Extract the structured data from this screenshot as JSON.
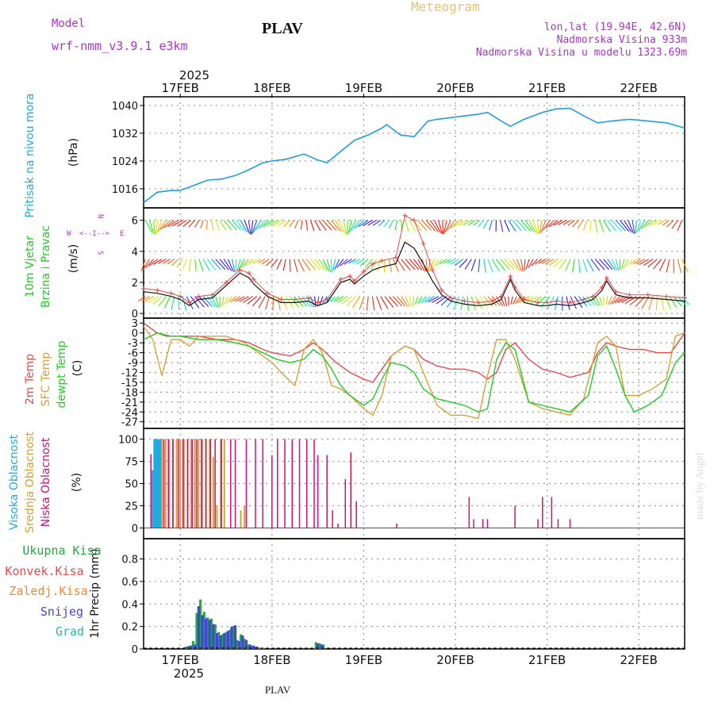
{
  "header": {
    "model_label": "Model",
    "model_name": "wrf-nmm_v3.9.1 e3km",
    "station": "PLAV",
    "title": "Meteogram",
    "lonlat": "lon,lat (19.94E, 42.6N)",
    "elevation": "Nadmorska Visina 933m",
    "model_elevation": "Nadmorska Visina u modelu 1323.69m",
    "footer_station": "PLAV",
    "credit": "made by Angel"
  },
  "colors": {
    "pressure": "#1f9fe0",
    "temp2m": "#e84a4a",
    "sfc": "#d4a23a",
    "dew": "#22cc22",
    "high_cloud": "#22aadd",
    "mid_cloud": "#d6a030",
    "low_cloud": "#cc1177",
    "total_precip": "#22aa44",
    "conv_precip": "#e84a4a",
    "freezing_precip": "#ee8833",
    "snow": "#4444dd",
    "hail": "#22bbaa",
    "grid": "#999999",
    "label_purple": "#aa33cc",
    "title_orange": "#e8c070"
  },
  "chart_data": [
    {
      "type": "line",
      "panel": "pressure",
      "x_dates": [
        "2025",
        "17FEB",
        "18FEB",
        "19FEB",
        "20FEB",
        "21FEB",
        "22FEB"
      ],
      "xlim_days": [
        16.6,
        22.5
      ],
      "ylabel": "(hPa)",
      "side_label": "Pritisak na nivou mora",
      "yticks": [
        1016,
        1024,
        1032,
        1040
      ],
      "ylim": [
        1010.5,
        1042.5
      ],
      "x": [
        16.6,
        16.75,
        16.9,
        17.0,
        17.15,
        17.3,
        17.45,
        17.6,
        17.75,
        17.9,
        18.0,
        18.15,
        18.35,
        18.5,
        18.6,
        18.75,
        18.9,
        19.05,
        19.2,
        19.25,
        19.4,
        19.55,
        19.7,
        19.8,
        19.95,
        20.1,
        20.25,
        20.35,
        20.5,
        20.6,
        20.75,
        20.95,
        21.1,
        21.25,
        21.4,
        21.55,
        21.7,
        21.9,
        22.1,
        22.3,
        22.5
      ],
      "values": [
        1012,
        1015,
        1015.5,
        1015.5,
        1017,
        1018.5,
        1018.8,
        1019.8,
        1021.5,
        1023.5,
        1024,
        1024.5,
        1026,
        1024.3,
        1023.5,
        1026.8,
        1030,
        1031.5,
        1033.5,
        1034.5,
        1031.5,
        1031,
        1035.5,
        1036,
        1036.5,
        1037,
        1037.5,
        1038,
        1035.5,
        1034,
        1036,
        1038,
        1039,
        1039.2,
        1037,
        1035,
        1035.5,
        1036,
        1035.5,
        1035,
        1033.5
      ]
    },
    {
      "type": "line",
      "panel": "wind",
      "ylabel": "(m/s)",
      "side_label": "10m Vjetar Brzina i Pravac",
      "compass": {
        "n": "N",
        "w": "W",
        "e": "E",
        "s": "S",
        "a": "<--I-->"
      },
      "yticks": [
        0,
        2,
        4,
        6
      ],
      "ylim": [
        -0.3,
        6.8
      ],
      "x": [
        16.6,
        16.75,
        16.9,
        17.0,
        17.1,
        17.2,
        17.35,
        17.5,
        17.65,
        17.75,
        17.8,
        17.95,
        18.1,
        18.25,
        18.4,
        18.5,
        18.6,
        18.75,
        18.85,
        18.9,
        19.0,
        19.1,
        19.2,
        19.35,
        19.45,
        19.55,
        19.65,
        19.75,
        19.85,
        19.95,
        20.1,
        20.25,
        20.4,
        20.5,
        20.6,
        20.65,
        20.75,
        20.9,
        21.0,
        21.1,
        21.25,
        21.4,
        21.5,
        21.6,
        21.65,
        21.75,
        21.9,
        22.1,
        22.3,
        22.5
      ],
      "values": [
        1.4,
        1.3,
        1.1,
        0.9,
        0.5,
        0.9,
        1.0,
        1.8,
        2.6,
        2.3,
        1.9,
        1.1,
        0.7,
        0.7,
        0.8,
        0.5,
        0.7,
        2.0,
        2.2,
        1.9,
        2.4,
        2.8,
        3.0,
        3.2,
        4.6,
        4.2,
        3.2,
        2.1,
        1.2,
        0.8,
        0.6,
        0.5,
        0.6,
        0.9,
        2.2,
        1.5,
        0.7,
        0.5,
        0.5,
        0.6,
        0.5,
        0.7,
        0.9,
        1.5,
        2.1,
        1.2,
        1.0,
        1.0,
        0.9,
        0.8
      ],
      "max_values": [
        1.6,
        1.5,
        1.3,
        1.1,
        0.7,
        1.1,
        1.2,
        2.0,
        2.8,
        2.6,
        2.2,
        1.3,
        0.9,
        0.9,
        1.0,
        0.7,
        0.9,
        2.2,
        2.4,
        2.1,
        2.7,
        3.2,
        3.4,
        3.6,
        6.3,
        6.0,
        4.5,
        2.8,
        1.5,
        1.0,
        0.8,
        0.7,
        0.8,
        1.1,
        2.4,
        1.7,
        0.9,
        0.7,
        0.7,
        0.8,
        0.7,
        0.9,
        1.1,
        1.7,
        2.3,
        1.4,
        1.2,
        1.2,
        1.1,
        1.0
      ]
    },
    {
      "type": "line",
      "panel": "temperature",
      "ylabel": "(C)",
      "side_labels": [
        "2m Temp",
        "SFC Temp",
        "dewpt Temp"
      ],
      "yticks": [
        3,
        0,
        -3,
        -6,
        -9,
        -12,
        -15,
        -18,
        -21,
        -24,
        -27
      ],
      "ylim": [
        -29,
        4.5
      ],
      "series": [
        {
          "name": "2m Temp",
          "x": [
            16.6,
            16.75,
            16.85,
            17.0,
            17.2,
            17.4,
            17.6,
            17.75,
            17.9,
            18.0,
            18.2,
            18.35,
            18.45,
            18.55,
            18.7,
            18.85,
            19.0,
            19.1,
            19.2,
            19.3,
            19.45,
            19.55,
            19.65,
            19.8,
            19.95,
            20.1,
            20.25,
            20.35,
            20.45,
            20.55,
            20.65,
            20.8,
            20.95,
            21.1,
            21.25,
            21.45,
            21.55,
            21.65,
            21.75,
            21.9,
            22.05,
            22.2,
            22.35,
            22.45,
            22.5
          ],
          "values": [
            3,
            0,
            -1,
            -1,
            -1,
            -2,
            -2,
            -3,
            -5,
            -6,
            -7,
            -5,
            -3,
            -5,
            -9,
            -12,
            -14,
            -15,
            -11,
            -7,
            -4,
            -5,
            -8,
            -10,
            -11,
            -11,
            -12,
            -14,
            -12,
            -5,
            -3,
            -8,
            -11,
            -12,
            -13.5,
            -12,
            -6,
            -3,
            -4,
            -5,
            -5,
            -6,
            -6,
            -2,
            0
          ]
        },
        {
          "name": "SFC Temp",
          "x": [
            16.6,
            16.7,
            16.8,
            16.9,
            17.0,
            17.1,
            17.2,
            17.35,
            17.5,
            17.7,
            17.85,
            18.0,
            18.1,
            18.25,
            18.35,
            18.45,
            18.55,
            18.65,
            18.75,
            18.85,
            19.0,
            19.1,
            19.2,
            19.3,
            19.45,
            19.55,
            19.65,
            19.8,
            19.95,
            20.1,
            20.25,
            20.35,
            20.45,
            20.55,
            20.65,
            20.8,
            20.95,
            21.1,
            21.25,
            21.4,
            21.55,
            21.65,
            21.75,
            21.85,
            22.0,
            22.15,
            22.3,
            22.4,
            22.5
          ],
          "values": [
            2,
            -2,
            -13,
            -2,
            -2,
            -4,
            -1,
            -1,
            -1,
            -3,
            -6,
            -9,
            -12,
            -16,
            -5,
            -2,
            -6,
            -16,
            -17,
            -19,
            -23,
            -25,
            -19,
            -7,
            -4,
            -5,
            -12,
            -22,
            -25,
            -25,
            -26,
            -13,
            -2,
            -2,
            -8,
            -21,
            -23,
            -24,
            -25,
            -20,
            -3,
            -1,
            -4,
            -19,
            -19,
            -17,
            -14,
            -1,
            0
          ]
        },
        {
          "name": "dewpt Temp",
          "x": [
            16.6,
            16.75,
            16.9,
            17.0,
            17.2,
            17.4,
            17.6,
            17.75,
            17.9,
            18.05,
            18.2,
            18.35,
            18.45,
            18.55,
            18.65,
            18.75,
            18.85,
            19.0,
            19.1,
            19.2,
            19.3,
            19.45,
            19.55,
            19.65,
            19.8,
            19.95,
            20.1,
            20.25,
            20.35,
            20.45,
            20.55,
            20.65,
            20.8,
            20.95,
            21.1,
            21.25,
            21.45,
            21.55,
            21.65,
            21.75,
            21.85,
            21.95,
            22.1,
            22.25,
            22.4,
            22.5
          ],
          "values": [
            -2,
            0,
            -1,
            -1,
            -2,
            -2,
            -3,
            -4,
            -6,
            -8,
            -9,
            -8,
            -5,
            -7,
            -11,
            -16,
            -19,
            -22,
            -20,
            -14,
            -9,
            -10,
            -12,
            -17,
            -20,
            -21,
            -22,
            -24,
            -23,
            -8,
            -3,
            -5,
            -21,
            -22,
            -23,
            -24,
            -19,
            -7,
            -4,
            -11,
            -19,
            -24,
            -22,
            -19,
            -9,
            -6
          ]
        }
      ]
    },
    {
      "type": "bar",
      "panel": "cloud_cover",
      "ylabel": "(%)",
      "side_labels": [
        "Visoka Oblacnost",
        "Srednja Oblacnost",
        "Niska Oblacnost"
      ],
      "yticks": [
        0,
        25,
        50,
        75,
        100
      ],
      "ylim": [
        0,
        100
      ],
      "series": [
        {
          "name": "Visoka Oblacnost",
          "x": [
            16.7,
            16.72,
            16.74,
            16.76,
            16.78
          ],
          "values": [
            65,
            100,
            100,
            100,
            100
          ]
        },
        {
          "name": "Srednja Oblacnost",
          "x": [
            16.8,
            16.84,
            16.88,
            16.92,
            16.96,
            17.0,
            17.04,
            17.08,
            17.12,
            17.16,
            17.2,
            17.24,
            17.28,
            17.32,
            17.36,
            17.4,
            17.44,
            17.48,
            17.66,
            17.7
          ],
          "values": [
            100,
            100,
            100,
            100,
            100,
            100,
            100,
            100,
            100,
            100,
            100,
            100,
            100,
            100,
            80,
            25,
            100,
            100,
            20,
            25
          ]
        },
        {
          "name": "Niska Oblacnost",
          "x": [
            16.68,
            16.82,
            16.87,
            16.92,
            16.98,
            17.03,
            17.08,
            17.13,
            17.18,
            17.23,
            17.28,
            17.33,
            17.38,
            17.45,
            17.55,
            17.6,
            17.72,
            17.82,
            17.9,
            18.0,
            18.06,
            18.14,
            18.22,
            18.3,
            18.38,
            18.46,
            18.5,
            18.6,
            18.66,
            18.72,
            18.8,
            18.86,
            18.92,
            19.36,
            20.15,
            20.2,
            20.3,
            20.35,
            20.65,
            20.9,
            20.95,
            21.05,
            21.12,
            21.25
          ],
          "values": [
            83,
            100,
            100,
            100,
            100,
            100,
            100,
            100,
            100,
            100,
            100,
            100,
            100,
            100,
            100,
            100,
            100,
            100,
            100,
            82,
            100,
            100,
            100,
            100,
            100,
            100,
            82,
            82,
            20,
            5,
            55,
            85,
            30,
            5,
            35,
            10,
            10,
            10,
            25,
            10,
            35,
            35,
            10,
            10
          ]
        }
      ]
    },
    {
      "type": "bar",
      "panel": "precipitation",
      "ylabel": "1hr Precip (mm)",
      "side_labels": [
        "Ukupna Kisa",
        "Konvek.Kisa",
        "Zaledj.Kisa",
        "Snijeg",
        "Grad"
      ],
      "yticks": [
        0,
        0.2,
        0.4,
        0.6,
        0.8
      ],
      "ylim": [
        0,
        0.9
      ],
      "series": [
        {
          "name": "Ukupna Kisa",
          "x": [
            17.06,
            17.1,
            17.14,
            17.18,
            17.22,
            17.26,
            17.3,
            17.34,
            17.38,
            17.42,
            17.46,
            17.5,
            17.54,
            17.58,
            17.62,
            17.66,
            17.7,
            17.74,
            17.78,
            17.82,
            17.86,
            17.9,
            18.48,
            18.52,
            18.56
          ],
          "values": [
            0.02,
            0.03,
            0.07,
            0.32,
            0.44,
            0.33,
            0.28,
            0.27,
            0.22,
            0.15,
            0.13,
            0.15,
            0.17,
            0.2,
            0.08,
            0.13,
            0.09,
            0.04,
            0.03,
            0.02,
            0.01,
            0.01,
            0.06,
            0.05,
            0.04
          ]
        },
        {
          "name": "Snijeg",
          "x": [
            17.08,
            17.12,
            17.16,
            17.2,
            17.24,
            17.28,
            17.32,
            17.36,
            17.4,
            17.44,
            17.48,
            17.52,
            17.56,
            17.6,
            17.64,
            17.68,
            17.72,
            17.76,
            17.8,
            17.84,
            17.88,
            18.5,
            18.54
          ],
          "values": [
            0.02,
            0.03,
            0.04,
            0.38,
            0.3,
            0.27,
            0.26,
            0.22,
            0.14,
            0.12,
            0.14,
            0.16,
            0.2,
            0.21,
            0.07,
            0.12,
            0.08,
            0.04,
            0.03,
            0.02,
            0.01,
            0.05,
            0.04
          ]
        },
        {
          "name": "Konvek.Kisa",
          "x": [
            17.64,
            17.72
          ],
          "values": [
            0.02,
            0.01
          ]
        }
      ]
    }
  ]
}
